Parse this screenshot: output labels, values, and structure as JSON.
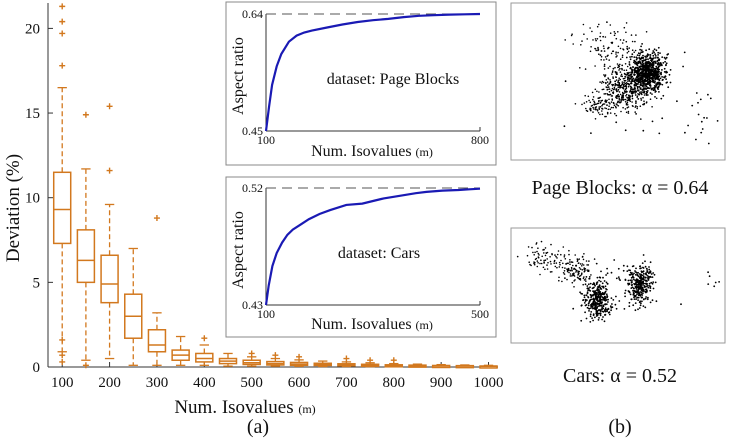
{
  "colors": {
    "box": "#d2781e",
    "inset_line": "#1a1ab4",
    "scatter": "#000000"
  },
  "chart_data": [
    {
      "type": "box",
      "xlabel": "Num. Isovalues",
      "xlabel_unit": "(m)",
      "ylabel": "Deviation (%)",
      "ylim": [
        0,
        21.5
      ],
      "yticks": [
        0,
        5,
        10,
        15,
        20
      ],
      "categories": [
        "100",
        "150",
        "200",
        "250",
        "300",
        "350",
        "400",
        "450",
        "500",
        "550",
        "600",
        "650",
        "700",
        "750",
        "800",
        "850",
        "900",
        "950",
        "1000"
      ],
      "xtick_labels": [
        "100",
        "200",
        "300",
        "400",
        "500",
        "600",
        "700",
        "800",
        "900",
        "1000"
      ],
      "boxes": [
        {
          "x": 100,
          "whisker_low": 0.9,
          "q1": 7.3,
          "median": 9.3,
          "q3": 11.5,
          "whisker_high": 16.5,
          "outliers": [
            0.3,
            0.7,
            1.6,
            17.8,
            19.7,
            20.4,
            21.3
          ]
        },
        {
          "x": 150,
          "whisker_low": 0.4,
          "q1": 5.0,
          "median": 6.3,
          "q3": 8.1,
          "whisker_high": 11.7,
          "outliers": [
            0.1,
            14.9
          ]
        },
        {
          "x": 200,
          "whisker_low": 0.5,
          "q1": 3.8,
          "median": 4.9,
          "q3": 6.6,
          "whisker_high": 9.6,
          "outliers": [
            11.6,
            15.4
          ]
        },
        {
          "x": 250,
          "whisker_low": 0.1,
          "q1": 1.7,
          "median": 3.0,
          "q3": 4.3,
          "whisker_high": 7.0,
          "outliers": []
        },
        {
          "x": 300,
          "whisker_low": 0.1,
          "q1": 0.9,
          "median": 1.3,
          "q3": 2.2,
          "whisker_high": 3.2,
          "outliers": [
            8.8
          ]
        },
        {
          "x": 350,
          "whisker_low": 0.1,
          "q1": 0.4,
          "median": 0.7,
          "q3": 1.0,
          "whisker_high": 1.8,
          "outliers": []
        },
        {
          "x": 400,
          "whisker_low": 0.1,
          "q1": 0.3,
          "median": 0.5,
          "q3": 0.8,
          "whisker_high": 1.3,
          "outliers": [
            1.7
          ]
        },
        {
          "x": 450,
          "whisker_low": 0.05,
          "q1": 0.2,
          "median": 0.35,
          "q3": 0.5,
          "whisker_high": 0.8,
          "outliers": []
        },
        {
          "x": 500,
          "whisker_low": 0.05,
          "q1": 0.15,
          "median": 0.25,
          "q3": 0.4,
          "whisker_high": 0.6,
          "outliers": [
            0.8
          ]
        },
        {
          "x": 550,
          "whisker_low": 0.05,
          "q1": 0.12,
          "median": 0.2,
          "q3": 0.32,
          "whisker_high": 0.5,
          "outliers": [
            0.7
          ]
        },
        {
          "x": 600,
          "whisker_low": 0.04,
          "q1": 0.1,
          "median": 0.17,
          "q3": 0.27,
          "whisker_high": 0.42,
          "outliers": [
            0.6
          ]
        },
        {
          "x": 650,
          "whisker_low": 0.03,
          "q1": 0.09,
          "median": 0.14,
          "q3": 0.22,
          "whisker_high": 0.35,
          "outliers": []
        },
        {
          "x": 700,
          "whisker_low": 0.03,
          "q1": 0.08,
          "median": 0.12,
          "q3": 0.19,
          "whisker_high": 0.3,
          "outliers": [
            0.5
          ]
        },
        {
          "x": 750,
          "whisker_low": 0.02,
          "q1": 0.06,
          "median": 0.1,
          "q3": 0.16,
          "whisker_high": 0.25,
          "outliers": [
            0.4
          ]
        },
        {
          "x": 800,
          "whisker_low": 0.02,
          "q1": 0.05,
          "median": 0.08,
          "q3": 0.13,
          "whisker_high": 0.2,
          "outliers": [
            0.4
          ]
        },
        {
          "x": 850,
          "whisker_low": 0.02,
          "q1": 0.04,
          "median": 0.07,
          "q3": 0.11,
          "whisker_high": 0.17,
          "outliers": []
        },
        {
          "x": 900,
          "whisker_low": 0.01,
          "q1": 0.03,
          "median": 0.06,
          "q3": 0.09,
          "whisker_high": 0.14,
          "outliers": []
        },
        {
          "x": 950,
          "whisker_low": 0.01,
          "q1": 0.03,
          "median": 0.05,
          "q3": 0.08,
          "whisker_high": 0.12,
          "outliers": []
        },
        {
          "x": 1000,
          "whisker_low": 0.01,
          "q1": 0.02,
          "median": 0.04,
          "q3": 0.06,
          "whisker_high": 0.1,
          "outliers": []
        }
      ],
      "panel_label": "(a)"
    },
    {
      "type": "line",
      "annotation": "dataset: Page Blocks",
      "xlabel": "Num. Isovalues",
      "xlabel_unit": "(m)",
      "ylabel": "Aspect ratio",
      "xlim": [
        100,
        800
      ],
      "ylim": [
        0.45,
        0.64
      ],
      "xtick_labels": [
        "100",
        "800"
      ],
      "ytick_labels": [
        "0.45",
        "0.64"
      ],
      "reference_line": 0.64,
      "x": [
        100,
        110,
        120,
        135,
        150,
        175,
        200,
        225,
        250,
        300,
        350,
        400,
        450,
        500,
        550,
        600,
        650,
        700,
        750,
        800
      ],
      "y": [
        0.45,
        0.49,
        0.525,
        0.555,
        0.575,
        0.595,
        0.605,
        0.61,
        0.613,
        0.618,
        0.623,
        0.627,
        0.63,
        0.632,
        0.635,
        0.637,
        0.638,
        0.639,
        0.6395,
        0.64
      ]
    },
    {
      "type": "line",
      "annotation": "dataset: Cars",
      "xlabel": "Num. Isovalues",
      "xlabel_unit": "(m)",
      "ylabel": "Aspect ratio",
      "xlim": [
        100,
        500
      ],
      "ylim": [
        0.43,
        0.52
      ],
      "xtick_labels": [
        "100",
        "500"
      ],
      "ytick_labels": [
        "0.43",
        "0.52"
      ],
      "reference_line": 0.52,
      "x": [
        100,
        105,
        112,
        120,
        130,
        140,
        150,
        165,
        180,
        200,
        220,
        250,
        280,
        300,
        320,
        350,
        380,
        400,
        430,
        460,
        480,
        500
      ],
      "y": [
        0.43,
        0.445,
        0.46,
        0.47,
        0.478,
        0.484,
        0.488,
        0.492,
        0.496,
        0.5,
        0.503,
        0.507,
        0.508,
        0.51,
        0.512,
        0.514,
        0.516,
        0.517,
        0.518,
        0.5185,
        0.519,
        0.5195
      ]
    },
    {
      "type": "scatter",
      "caption": "Page Blocks: α = 0.64"
    },
    {
      "type": "scatter",
      "caption": "Cars: α = 0.52",
      "panel_label": "(b)"
    }
  ]
}
